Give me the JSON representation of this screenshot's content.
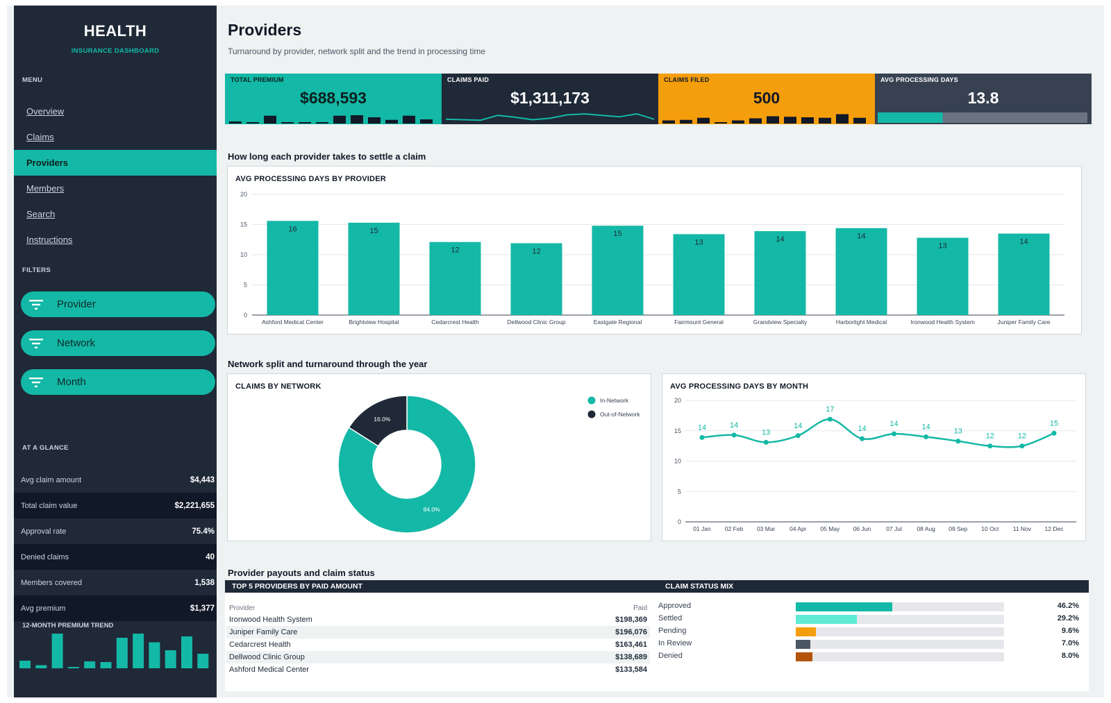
{
  "brand": {
    "title": "HEALTH",
    "subtitle": "INSURANCE DASHBOARD"
  },
  "sidebar": {
    "menu_heading": "MENU",
    "menu": [
      {
        "label": "Overview",
        "active": false
      },
      {
        "label": "Claims",
        "active": false
      },
      {
        "label": "Providers",
        "active": true
      },
      {
        "label": "Members",
        "active": false
      },
      {
        "label": "Search",
        "active": false
      },
      {
        "label": "Instructions",
        "active": false
      }
    ],
    "filters_heading": "FILTERS",
    "filters": [
      {
        "label": "Provider",
        "icon": "filter-icon"
      },
      {
        "label": "Network",
        "icon": "filter-icon"
      },
      {
        "label": "Month",
        "icon": "filter-icon"
      }
    ],
    "glance_heading": "AT A GLANCE",
    "glance": [
      {
        "label": "Avg claim amount",
        "value": "$4,443"
      },
      {
        "label": "Total claim value",
        "value": "$2,221,655"
      },
      {
        "label": "Approval rate",
        "value": "75.4%"
      },
      {
        "label": "Denied claims",
        "value": "40"
      },
      {
        "label": "Members covered",
        "value": "1,538"
      },
      {
        "label": "Avg premium",
        "value": "$1,377"
      }
    ],
    "trend_label": "12-MONTH PREMIUM TREND",
    "trend_values": [
      0.22,
      0.09,
      1.0,
      0.02,
      0.2,
      0.18,
      0.88,
      1.0,
      0.75,
      0.52,
      0.92,
      0.42
    ]
  },
  "page": {
    "title": "Providers",
    "subtitle": "Turnaround by provider, network split and the trend in processing time"
  },
  "kpis": [
    {
      "label": "TOTAL PREMIUM",
      "value": "$688,593",
      "bg": "#14b8a6",
      "fg": "#0b1f1d",
      "spark": "bars",
      "spark_color": "#111827",
      "spark_values": [
        0.2,
        0.12,
        0.75,
        0.05,
        0.1,
        0.1,
        0.75,
        0.8,
        0.6,
        0.35,
        0.75,
        0.4
      ]
    },
    {
      "label": "CLAIMS PAID",
      "value": "$1,311,173",
      "bg": "#1f2937",
      "fg": "#ffffff",
      "spark": "line",
      "spark_color": "#14b8a6",
      "spark_values": [
        0.3,
        0.25,
        0.2,
        0.7,
        0.5,
        0.25,
        0.4,
        0.75,
        0.85,
        0.7,
        0.55,
        0.85,
        0.3
      ]
    },
    {
      "label": "CLAIMS FILED",
      "value": "500",
      "bg": "#f59e0b",
      "fg": "#111827",
      "spark": "bars",
      "spark_color": "#111827",
      "spark_values": [
        0.3,
        0.35,
        0.55,
        0.08,
        0.3,
        0.5,
        0.7,
        0.65,
        0.6,
        0.55,
        0.9,
        0.55
      ]
    },
    {
      "label": "AVG PROCESSING DAYS",
      "value": "13.8",
      "bg": "#374151",
      "fg": "#ffffff",
      "spark": "progress",
      "spark_color": "#14b8a6",
      "progress": 0.31
    }
  ],
  "sections": {
    "providers": "How long each provider takes to settle a claim",
    "network": "Network split and turnaround through the year",
    "payouts": "Provider payouts and claim status"
  },
  "chart_data": [
    {
      "type": "bar",
      "title": "AVG PROCESSING DAYS BY PROVIDER",
      "categories": [
        "Ashford Medical Center",
        "Brightview Hospital",
        "Cedarcrest Health",
        "Dellwood Clinic Group",
        "Eastgate Regional",
        "Fairmount General",
        "Grandview Specialty",
        "Harborlight Medical",
        "Ironwood Health System",
        "Juniper Family Care"
      ],
      "values": [
        15.6,
        15.3,
        12.1,
        11.9,
        14.8,
        13.4,
        13.9,
        14.4,
        12.8,
        13.5
      ],
      "labels": [
        "16",
        "15",
        "12",
        "12",
        "15",
        "13",
        "14",
        "14",
        "13",
        "14"
      ],
      "yticks": [
        "0",
        "5",
        "10",
        "15",
        "20"
      ],
      "ylim": [
        0,
        20
      ],
      "grid": true,
      "color": "#14b8a6"
    },
    {
      "type": "pie",
      "title": "CLAIMS BY NETWORK",
      "slices": [
        {
          "name": "In-Network",
          "value": 84.0,
          "label": "84.0%",
          "color": "#14b8a6"
        },
        {
          "name": "Out-of-Network",
          "value": 16.0,
          "label": "16.0%",
          "color": "#1f2937"
        }
      ],
      "legend": "top-right"
    },
    {
      "type": "line",
      "title": "AVG PROCESSING DAYS BY MONTH",
      "categories": [
        "01 Jan",
        "02 Feb",
        "03 Mar",
        "04 Apr",
        "05 May",
        "06 Jun",
        "07 Jul",
        "08 Aug",
        "09 Sep",
        "10 Oct",
        "11 Nov",
        "12 Dec"
      ],
      "values": [
        13.9,
        14.3,
        13.1,
        14.2,
        16.9,
        13.7,
        14.5,
        14.0,
        13.3,
        12.5,
        12.5,
        14.6
      ],
      "labels": [
        "14",
        "14",
        "13",
        "14",
        "17",
        "14",
        "14",
        "14",
        "13",
        "12",
        "12",
        "15"
      ],
      "yticks": [
        "0",
        "5",
        "10",
        "15",
        "20"
      ],
      "ylim": [
        0,
        20
      ],
      "grid": true,
      "color": "#14b8a6"
    }
  ],
  "top_providers": {
    "title": "TOP 5 PROVIDERS BY PAID AMOUNT",
    "columns": [
      "Provider",
      "Paid"
    ],
    "rows": [
      {
        "provider": "Ironwood Health System",
        "paid": "$198,369"
      },
      {
        "provider": "Juniper Family Care",
        "paid": "$196,076"
      },
      {
        "provider": "Cedarcrest Health",
        "paid": "$163,461"
      },
      {
        "provider": "Dellwood Clinic Group",
        "paid": "$138,689"
      },
      {
        "provider": "Ashford Medical Center",
        "paid": "$133,584"
      }
    ]
  },
  "status_mix": {
    "title": "CLAIM STATUS MIX",
    "rows": [
      {
        "label": "Approved",
        "pct": "46.2%",
        "fraction": 0.462,
        "color": "#14b8a6"
      },
      {
        "label": "Settled",
        "pct": "29.2%",
        "fraction": 0.292,
        "color": "#5eead4"
      },
      {
        "label": "Pending",
        "pct": "9.6%",
        "fraction": 0.096,
        "color": "#f59e0b"
      },
      {
        "label": "In Review",
        "pct": "7.0%",
        "fraction": 0.07,
        "color": "#4b5563"
      },
      {
        "label": "Denied",
        "pct": "8.0%",
        "fraction": 0.08,
        "color": "#b45309"
      }
    ]
  }
}
